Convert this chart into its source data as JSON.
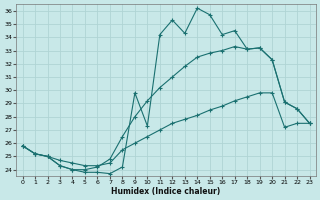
{
  "xlabel": "Humidex (Indice chaleur)",
  "bg_color": "#c8e8e8",
  "grid_color": "#b0d4d4",
  "line_color": "#1a7070",
  "xlim": [
    -0.5,
    23.5
  ],
  "ylim": [
    23.5,
    36.5
  ],
  "xticks": [
    0,
    1,
    2,
    3,
    4,
    5,
    6,
    7,
    8,
    9,
    10,
    11,
    12,
    13,
    14,
    15,
    16,
    17,
    18,
    19,
    20,
    21,
    22,
    23
  ],
  "yticks": [
    24,
    25,
    26,
    27,
    28,
    29,
    30,
    31,
    32,
    33,
    34,
    35,
    36
  ],
  "line1_x": [
    0,
    1,
    2,
    3,
    4,
    5,
    6,
    7,
    8,
    9,
    10,
    11,
    12,
    13,
    14,
    15,
    16,
    17,
    18,
    19,
    20,
    21,
    22,
    23
  ],
  "line1_y": [
    25.8,
    25.2,
    25.0,
    24.3,
    24.0,
    23.8,
    23.8,
    23.7,
    24.2,
    29.8,
    27.3,
    34.2,
    35.3,
    34.3,
    36.2,
    35.7,
    34.2,
    34.5,
    33.1,
    33.2,
    32.3,
    29.1,
    28.6,
    27.5
  ],
  "line2_x": [
    0,
    1,
    2,
    3,
    4,
    5,
    6,
    7,
    8,
    9,
    10,
    11,
    12,
    13,
    14,
    15,
    16,
    17,
    18,
    19,
    20,
    21,
    22,
    23
  ],
  "line2_y": [
    25.8,
    25.2,
    25.0,
    24.3,
    24.0,
    24.0,
    24.2,
    24.8,
    26.5,
    28.0,
    29.2,
    30.2,
    31.0,
    31.8,
    32.5,
    32.8,
    33.0,
    33.3,
    33.1,
    33.2,
    32.3,
    29.1,
    28.6,
    27.5
  ],
  "line3_x": [
    0,
    1,
    2,
    3,
    4,
    5,
    6,
    7,
    8,
    9,
    10,
    11,
    12,
    13,
    14,
    15,
    16,
    17,
    18,
    19,
    20,
    21,
    22,
    23
  ],
  "line3_y": [
    25.8,
    25.2,
    25.0,
    24.7,
    24.5,
    24.3,
    24.3,
    24.5,
    25.5,
    26.0,
    26.5,
    27.0,
    27.5,
    27.8,
    28.1,
    28.5,
    28.8,
    29.2,
    29.5,
    29.8,
    29.8,
    27.2,
    27.5,
    27.5
  ]
}
